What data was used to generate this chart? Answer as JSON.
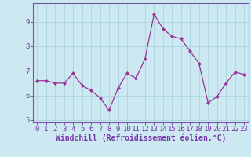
{
  "x": [
    0,
    1,
    2,
    3,
    4,
    5,
    6,
    7,
    8,
    9,
    10,
    11,
    12,
    13,
    14,
    15,
    16,
    17,
    18,
    19,
    20,
    21,
    22,
    23
  ],
  "y": [
    6.6,
    6.6,
    6.5,
    6.5,
    6.9,
    6.4,
    6.2,
    5.9,
    5.4,
    6.3,
    6.9,
    6.7,
    7.5,
    9.3,
    8.7,
    8.4,
    8.3,
    7.8,
    7.3,
    5.7,
    5.95,
    6.5,
    6.95,
    6.85
  ],
  "line_color": "#993399",
  "marker": "D",
  "markersize": 2.0,
  "linewidth": 0.9,
  "xlabel": "Windchill (Refroidissement éolien,°C)",
  "xlim": [
    -0.5,
    23.5
  ],
  "ylim": [
    4.9,
    9.75
  ],
  "yticks": [
    5,
    6,
    7,
    8,
    9
  ],
  "xticks": [
    0,
    1,
    2,
    3,
    4,
    5,
    6,
    7,
    8,
    9,
    10,
    11,
    12,
    13,
    14,
    15,
    16,
    17,
    18,
    19,
    20,
    21,
    22,
    23
  ],
  "xtick_labels": [
    "0",
    "1",
    "2",
    "3",
    "4",
    "5",
    "6",
    "7",
    "8",
    "9",
    "10",
    "11",
    "12",
    "13",
    "14",
    "15",
    "16",
    "17",
    "18",
    "19",
    "20",
    "21",
    "22",
    "23"
  ],
  "background_color": "#cce8f0",
  "grid_color": "#aad4e0",
  "spine_color": "#7755aa",
  "tick_color": "#7733aa",
  "label_color": "#7733aa",
  "xlabel_fontsize": 7.0,
  "tick_fontsize": 6.5
}
